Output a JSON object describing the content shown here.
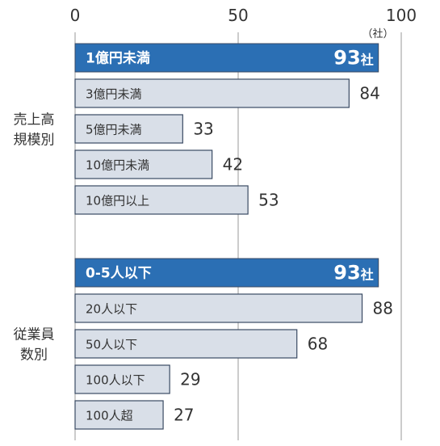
{
  "chart_data": {
    "type": "bar",
    "orientation": "horizontal",
    "xlim": [
      0,
      100
    ],
    "x_ticks": [
      "0",
      "50",
      "100"
    ],
    "unit_label": "（社）",
    "grid": true,
    "groups": [
      {
        "label_lines": [
          "売上高",
          "規模別"
        ],
        "bars": [
          {
            "label": "1億円未満",
            "value": 93,
            "value_text": "93",
            "unit": "社",
            "highlight": true
          },
          {
            "label": "3億円未満",
            "value": 84,
            "value_text": "84",
            "highlight": false
          },
          {
            "label": "5億円未満",
            "value": 33,
            "value_text": "33",
            "highlight": false
          },
          {
            "label": "10億円未満",
            "value": 42,
            "value_text": "42",
            "highlight": false
          },
          {
            "label": "10億円以上",
            "value": 53,
            "value_text": "53",
            "highlight": false
          }
        ]
      },
      {
        "label_lines": [
          "従業員",
          "数別"
        ],
        "bars": [
          {
            "label": "0-5人以下",
            "value": 93,
            "value_text": "93",
            "unit": "社",
            "highlight": true
          },
          {
            "label": "20人以下",
            "value": 88,
            "value_text": "88",
            "highlight": false
          },
          {
            "label": "50人以下",
            "value": 68,
            "value_text": "68",
            "highlight": false
          },
          {
            "label": "100人以下",
            "value": 29,
            "value_text": "29",
            "highlight": false
          },
          {
            "label": "100人超",
            "value": 27,
            "value_text": "27",
            "highlight": false
          }
        ]
      }
    ]
  },
  "colors": {
    "highlight_fill": "#2b6fb4",
    "highlight_text": "#ffffff",
    "bar_fill": "#d9dfe8",
    "bar_stroke": "#3a4a63",
    "text": "#333333",
    "grid": "#9a9a9a"
  }
}
